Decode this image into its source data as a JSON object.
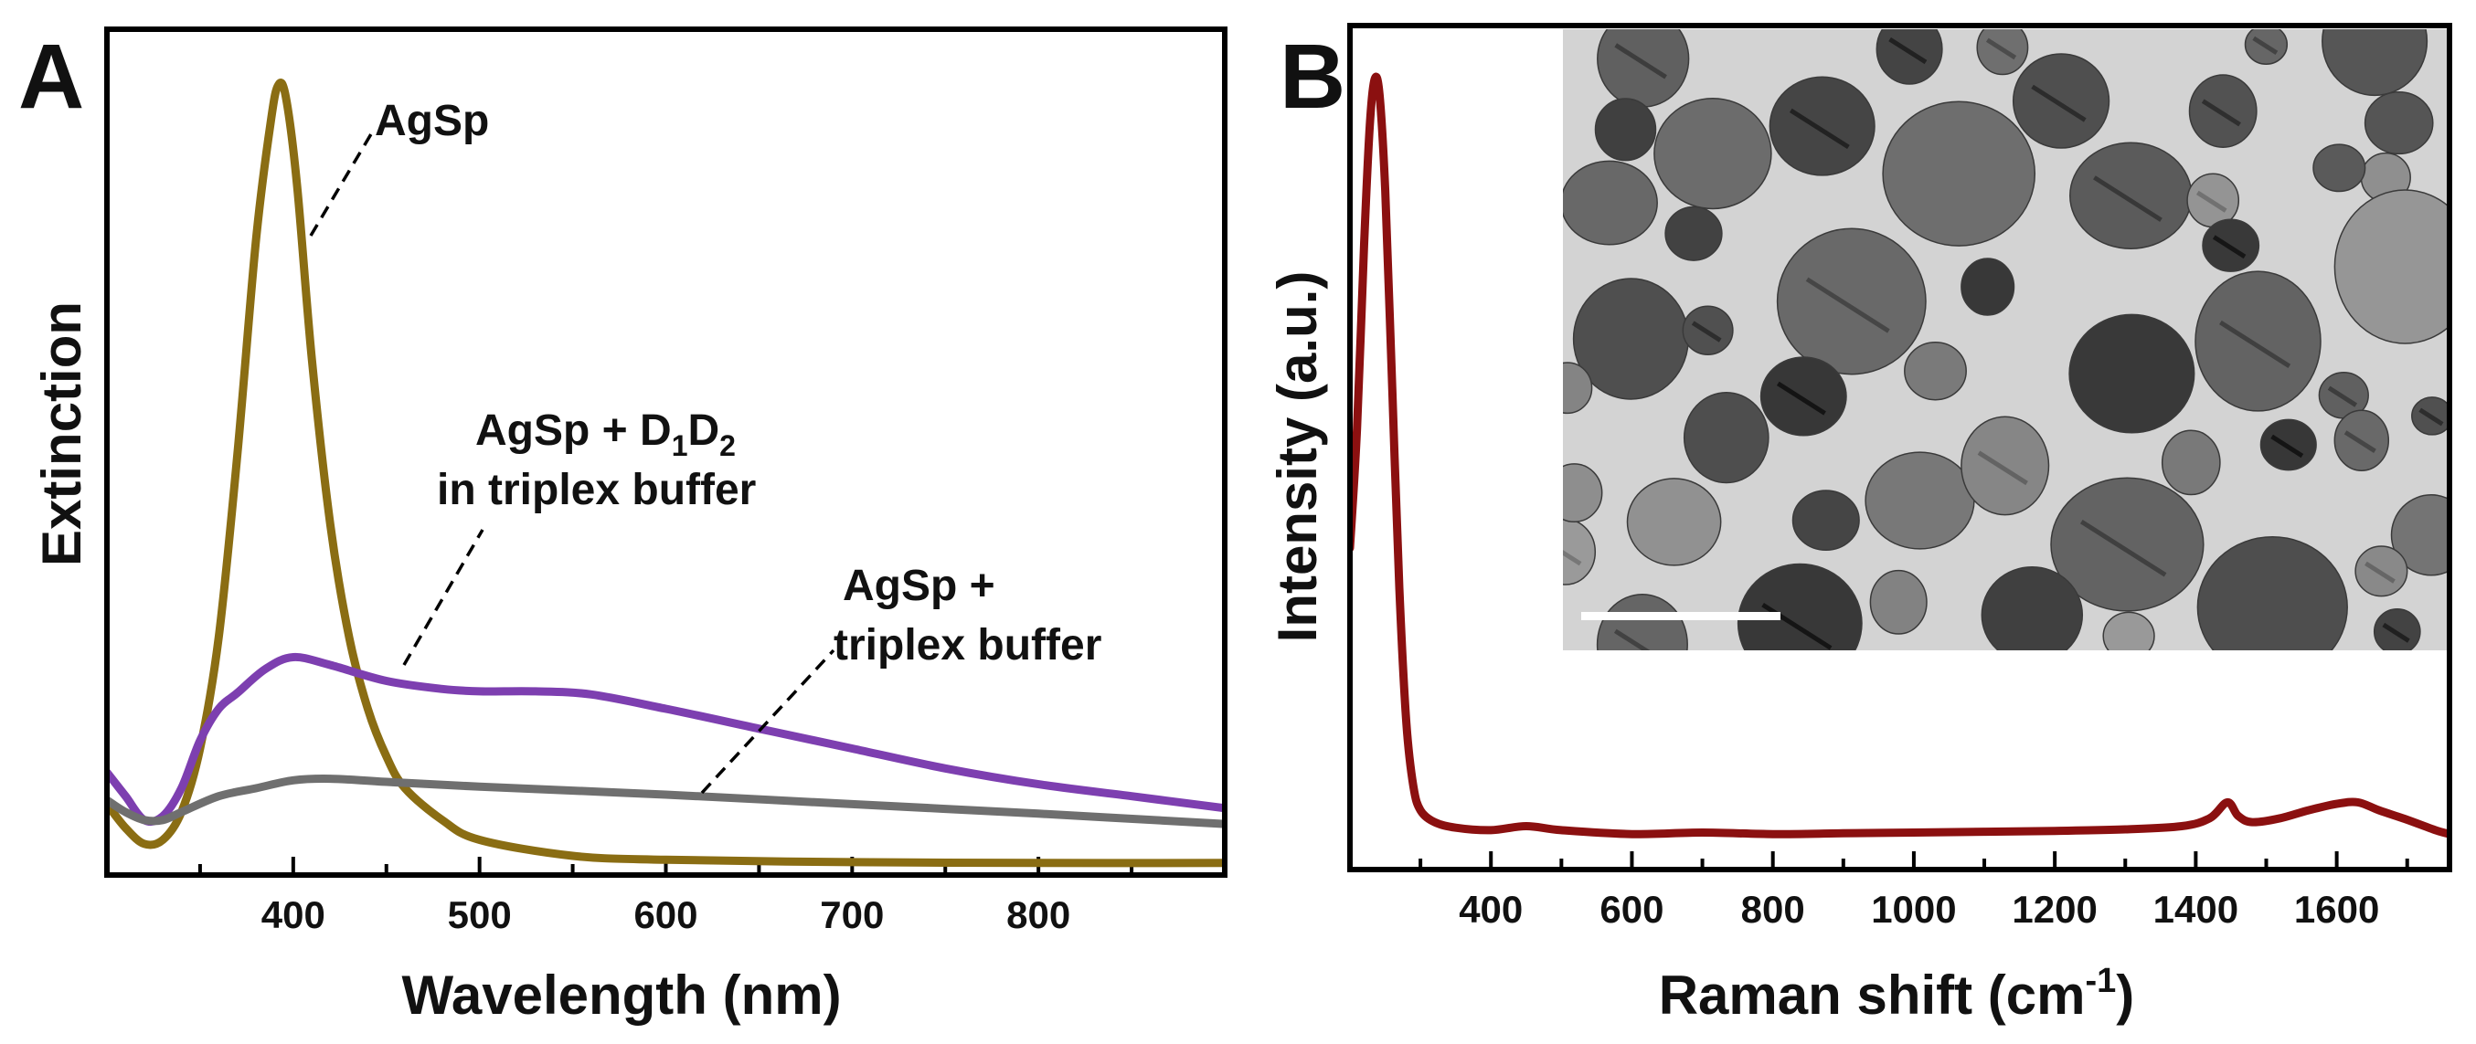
{
  "chart_data": [
    {
      "panel": "A",
      "type": "line",
      "title": "",
      "xlabel": "Wavelength (nm)",
      "ylabel": "Extinction",
      "xlim": [
        300,
        900
      ],
      "ylim": [
        0,
        1.0
      ],
      "x_ticks": [
        400,
        500,
        600,
        700,
        800
      ],
      "y_ticks": [],
      "grid": false,
      "series": [
        {
          "name": "AgSp",
          "color": "#8a6d13",
          "points": [
            [
              300,
              0.08
            ],
            [
              310,
              0.05
            ],
            [
              320,
              0.03
            ],
            [
              330,
              0.035
            ],
            [
              340,
              0.07
            ],
            [
              350,
              0.15
            ],
            [
              360,
              0.29
            ],
            [
              370,
              0.52
            ],
            [
              380,
              0.79
            ],
            [
              388,
              0.94
            ],
            [
              392,
              0.985
            ],
            [
              396,
              0.97
            ],
            [
              402,
              0.86
            ],
            [
              410,
              0.64
            ],
            [
              420,
              0.43
            ],
            [
              430,
              0.29
            ],
            [
              440,
              0.2
            ],
            [
              450,
              0.14
            ],
            [
              460,
              0.1
            ],
            [
              480,
              0.06
            ],
            [
              500,
              0.035
            ],
            [
              550,
              0.015
            ],
            [
              600,
              0.01
            ],
            [
              700,
              0.007
            ],
            [
              800,
              0.006
            ],
            [
              900,
              0.006
            ]
          ]
        },
        {
          "name": "AgSp + D1D2 in triplex buffer",
          "color": "#7d3fb0",
          "points": [
            [
              300,
              0.12
            ],
            [
              310,
              0.09
            ],
            [
              320,
              0.06
            ],
            [
              330,
              0.065
            ],
            [
              340,
              0.1
            ],
            [
              350,
              0.16
            ],
            [
              360,
              0.2
            ],
            [
              370,
              0.22
            ],
            [
              385,
              0.25
            ],
            [
              400,
              0.265
            ],
            [
              420,
              0.255
            ],
            [
              450,
              0.235
            ],
            [
              480,
              0.225
            ],
            [
              500,
              0.222
            ],
            [
              530,
              0.222
            ],
            [
              560,
              0.218
            ],
            [
              600,
              0.2
            ],
            [
              650,
              0.175
            ],
            [
              700,
              0.15
            ],
            [
              750,
              0.125
            ],
            [
              800,
              0.105
            ],
            [
              850,
              0.09
            ],
            [
              900,
              0.075
            ]
          ]
        },
        {
          "name": "AgSp + triplex buffer",
          "color": "#6f6f6f",
          "points": [
            [
              300,
              0.085
            ],
            [
              310,
              0.07
            ],
            [
              320,
              0.06
            ],
            [
              330,
              0.06
            ],
            [
              340,
              0.07
            ],
            [
              360,
              0.09
            ],
            [
              380,
              0.1
            ],
            [
              400,
              0.11
            ],
            [
              420,
              0.112
            ],
            [
              450,
              0.108
            ],
            [
              500,
              0.102
            ],
            [
              600,
              0.092
            ],
            [
              700,
              0.08
            ],
            [
              800,
              0.068
            ],
            [
              900,
              0.055
            ]
          ]
        }
      ],
      "annotations": [
        {
          "line1": "AgSp",
          "target_series": "AgSp"
        },
        {
          "line1": "AgSp + D",
          "sub1": "1",
          "mid": "D",
          "sub2": "2",
          "line2": "in triplex buffer",
          "target_series": "AgSp + D1D2 in triplex buffer"
        },
        {
          "line1": "AgSp +",
          "line2": "triplex buffer",
          "target_series": "AgSp + triplex buffer"
        }
      ]
    },
    {
      "panel": "B",
      "type": "line",
      "title": "",
      "xlabel_main": "Raman shift (cm",
      "xlabel_sup": "-1",
      "xlabel_end": ")",
      "ylabel": "Intensity (a.u.)",
      "xlim": [
        200,
        1760
      ],
      "ylim": [
        0,
        1.0
      ],
      "x_ticks": [
        400,
        600,
        800,
        1000,
        1200,
        1400,
        1600
      ],
      "y_ticks": [],
      "grid": false,
      "series": [
        {
          "name": "Raman spectrum",
          "color": "#8b1010",
          "points": [
            [
              200,
              0.4
            ],
            [
              210,
              0.55
            ],
            [
              220,
              0.78
            ],
            [
              228,
              0.93
            ],
            [
              235,
              0.99
            ],
            [
              242,
              0.97
            ],
            [
              250,
              0.85
            ],
            [
              260,
              0.6
            ],
            [
              270,
              0.35
            ],
            [
              280,
              0.18
            ],
            [
              290,
              0.1
            ],
            [
              300,
              0.07
            ],
            [
              320,
              0.055
            ],
            [
              350,
              0.048
            ],
            [
              400,
              0.045
            ],
            [
              450,
              0.05
            ],
            [
              500,
              0.045
            ],
            [
              600,
              0.04
            ],
            [
              700,
              0.042
            ],
            [
              800,
              0.04
            ],
            [
              900,
              0.041
            ],
            [
              1000,
              0.042
            ],
            [
              1100,
              0.043
            ],
            [
              1200,
              0.044
            ],
            [
              1300,
              0.046
            ],
            [
              1380,
              0.05
            ],
            [
              1420,
              0.06
            ],
            [
              1445,
              0.08
            ],
            [
              1460,
              0.063
            ],
            [
              1480,
              0.055
            ],
            [
              1520,
              0.06
            ],
            [
              1560,
              0.07
            ],
            [
              1600,
              0.078
            ],
            [
              1630,
              0.08
            ],
            [
              1660,
              0.07
            ],
            [
              1700,
              0.058
            ],
            [
              1740,
              0.045
            ],
            [
              1760,
              0.04
            ]
          ]
        }
      ],
      "inset": {
        "type": "micrograph",
        "description_label": "TEM image inset with scale bar"
      }
    }
  ]
}
